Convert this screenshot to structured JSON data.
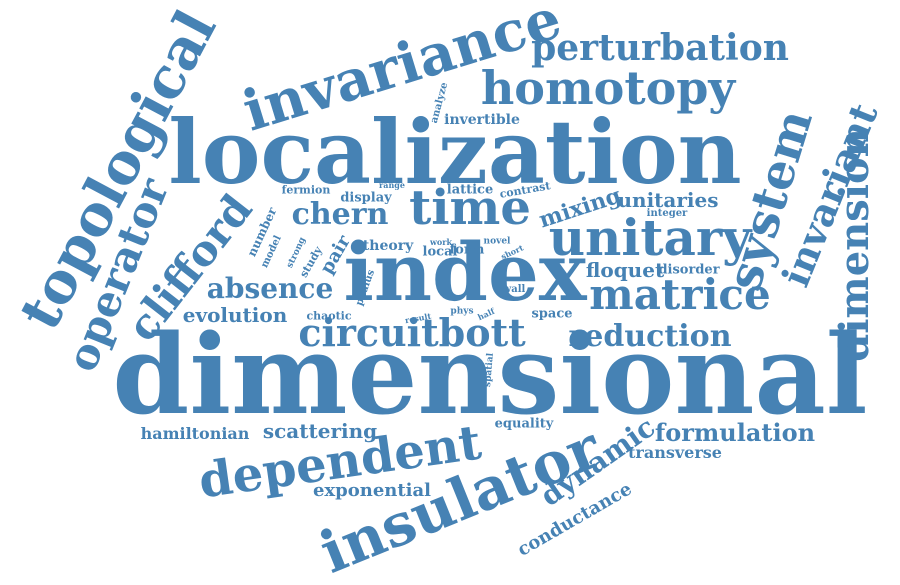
{
  "colors": {
    "word": "#4682b4",
    "background": "#ffffff"
  },
  "words": [
    "dimensional",
    "localization",
    "index",
    "invariance",
    "topological",
    "insulator",
    "unitary",
    "time",
    "homotopy",
    "perturbation",
    "dependent",
    "system",
    "dimension",
    "invariant",
    "operator",
    "clifford",
    "matrice",
    "circuitbott",
    "chern",
    "reduction",
    "absence",
    "floquet",
    "formulation",
    "scattering",
    "hamiltonian",
    "evolution",
    "dynamic",
    "unitaries",
    "exponential",
    "mixing",
    "conductance",
    "transverse",
    "invertible",
    "lattice",
    "display",
    "fermion",
    "contrast",
    "analyze",
    "range",
    "integer",
    "number",
    "model",
    "strong",
    "study",
    "pair",
    "theory",
    "work",
    "local",
    "form",
    "novel",
    "short",
    "disorder",
    "paulus",
    "result",
    "phys",
    "half",
    "wall",
    "chaotic",
    "space",
    "spatial",
    "equality"
  ]
}
